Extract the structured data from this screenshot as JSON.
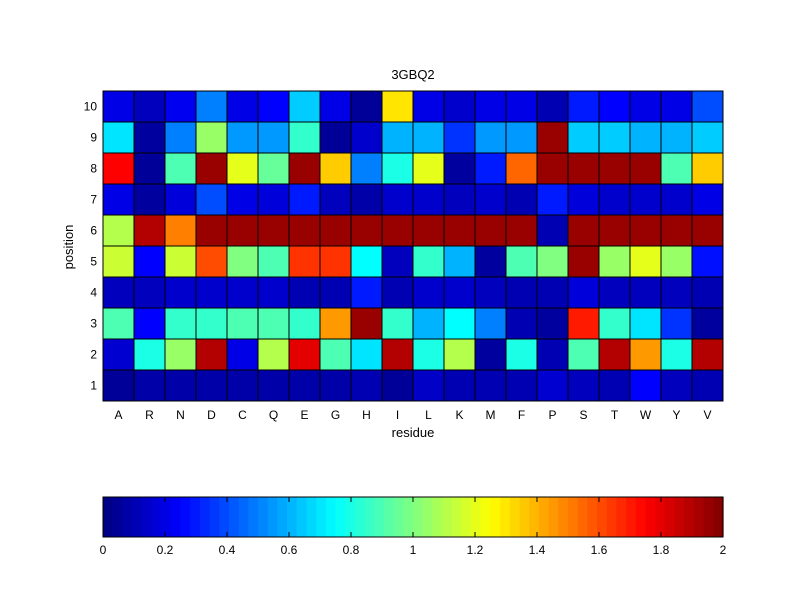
{
  "chart_data": {
    "type": "heatmap",
    "title": "3GBQ2",
    "xlabel": "residue",
    "ylabel": "position",
    "x_categories": [
      "A",
      "R",
      "N",
      "D",
      "C",
      "Q",
      "E",
      "G",
      "H",
      "I",
      "L",
      "K",
      "M",
      "F",
      "P",
      "S",
      "T",
      "W",
      "Y",
      "V"
    ],
    "y_categories": [
      "1",
      "2",
      "3",
      "4",
      "5",
      "6",
      "7",
      "8",
      "9",
      "10"
    ],
    "values": [
      [
        0.05,
        0.08,
        0.08,
        0.08,
        0.08,
        0.08,
        0.08,
        0.08,
        0.1,
        0.05,
        0.14,
        0.1,
        0.1,
        0.1,
        0.16,
        0.12,
        0.1,
        0.25,
        0.12,
        0.1
      ],
      [
        0.16,
        0.8,
        1.05,
        1.9,
        0.2,
        1.1,
        1.8,
        0.9,
        0.7,
        1.9,
        0.8,
        1.1,
        0.06,
        0.8,
        0.1,
        0.9,
        1.9,
        1.45,
        0.8,
        1.9
      ],
      [
        0.9,
        0.25,
        0.85,
        0.85,
        0.9,
        0.9,
        0.85,
        1.45,
        1.95,
        0.85,
        0.6,
        0.75,
        0.5,
        0.1,
        0.06,
        1.7,
        0.85,
        0.7,
        0.35,
        0.06
      ],
      [
        0.12,
        0.12,
        0.15,
        0.15,
        0.15,
        0.15,
        0.1,
        0.1,
        0.3,
        0.1,
        0.15,
        0.15,
        0.12,
        0.1,
        0.1,
        0.18,
        0.12,
        0.12,
        0.12,
        0.1
      ],
      [
        1.15,
        0.25,
        1.15,
        1.6,
        1.0,
        0.9,
        1.65,
        1.65,
        0.75,
        0.12,
        0.85,
        0.6,
        0.06,
        0.9,
        1.0,
        1.95,
        1.05,
        1.2,
        1.05,
        0.28
      ],
      [
        1.1,
        1.9,
        1.5,
        1.95,
        1.95,
        1.95,
        1.95,
        1.95,
        1.95,
        1.95,
        1.95,
        1.95,
        1.95,
        1.95,
        0.1,
        1.95,
        1.95,
        1.95,
        1.95,
        1.95
      ],
      [
        0.2,
        0.06,
        0.18,
        0.4,
        0.2,
        0.18,
        0.3,
        0.12,
        0.08,
        0.15,
        0.15,
        0.12,
        0.15,
        0.1,
        0.3,
        0.18,
        0.15,
        0.15,
        0.15,
        0.2
      ],
      [
        1.75,
        0.05,
        0.9,
        1.95,
        1.2,
        0.95,
        1.95,
        1.35,
        0.5,
        0.8,
        1.2,
        0.06,
        0.3,
        1.55,
        1.95,
        1.95,
        1.95,
        1.95,
        0.9,
        1.35
      ],
      [
        0.7,
        0.06,
        0.5,
        1.05,
        0.55,
        0.55,
        0.85,
        0.05,
        0.15,
        0.6,
        0.6,
        0.35,
        0.55,
        0.55,
        1.95,
        0.65,
        0.65,
        0.6,
        0.6,
        0.65
      ],
      [
        0.2,
        0.12,
        0.22,
        0.5,
        0.2,
        0.25,
        0.65,
        0.2,
        0.05,
        1.3,
        0.2,
        0.15,
        0.2,
        0.2,
        0.1,
        0.3,
        0.25,
        0.2,
        0.2,
        0.4
      ]
    ],
    "colorbar": {
      "range": [
        0,
        2
      ],
      "ticks": [
        "0",
        "0.2",
        "0.4",
        "0.6",
        "0.8",
        "1",
        "1.2",
        "1.4",
        "1.6",
        "1.8",
        "2"
      ],
      "colormap": "jet",
      "placement": "bottom"
    }
  }
}
